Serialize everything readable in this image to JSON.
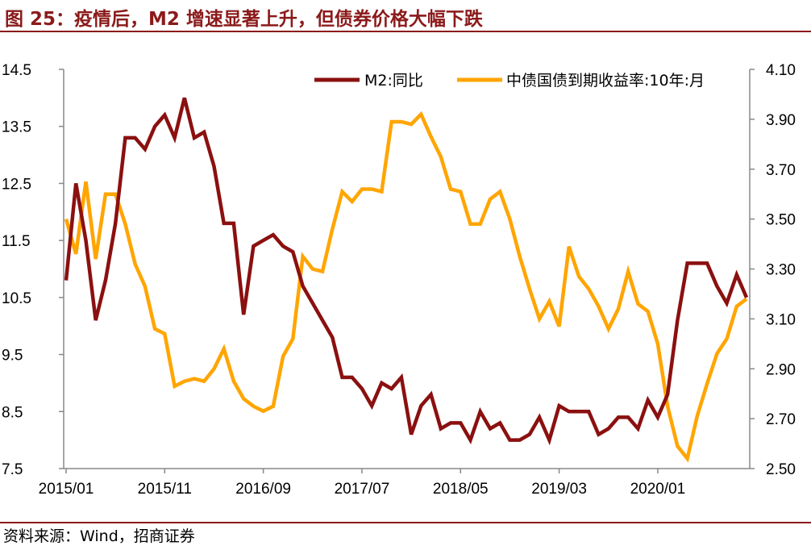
{
  "title": "图 25：疫情后，M2 增速显著上升，但债券价格大幅下跌",
  "source": "资料来源：Wind，招商证券",
  "colors": {
    "title": "#8B1A1A",
    "m2": "#8B1010",
    "yield": "#FFA500",
    "axis": "#888888"
  },
  "chart_data": {
    "type": "line",
    "x_tick_labels": [
      "2015/01",
      "2015/11",
      "2016/09",
      "2017/07",
      "2018/05",
      "2019/03",
      "2020/01"
    ],
    "x_tick_index": [
      0,
      10,
      20,
      30,
      40,
      50,
      60
    ],
    "left_axis": {
      "ticks": [
        "14.5",
        "13.5",
        "12.5",
        "11.5",
        "10.5",
        "9.5",
        "8.5",
        "7.5"
      ],
      "ylim": [
        7.5,
        14.5
      ]
    },
    "right_axis": {
      "ticks": [
        "4.10",
        "3.90",
        "3.70",
        "3.50",
        "3.30",
        "3.10",
        "2.90",
        "2.70",
        "2.50"
      ],
      "ylim": [
        2.5,
        4.1
      ]
    },
    "legend_position": "top-right",
    "series": [
      {
        "name": "M2:同比",
        "axis": "left",
        "values": [
          10.8,
          12.5,
          11.5,
          10.1,
          10.8,
          11.8,
          13.3,
          13.3,
          13.1,
          13.5,
          13.7,
          13.3,
          14.0,
          13.3,
          13.4,
          12.8,
          11.8,
          11.8,
          10.2,
          11.4,
          11.5,
          11.6,
          11.4,
          11.3,
          10.7,
          10.4,
          10.1,
          9.8,
          9.1,
          9.1,
          8.9,
          8.6,
          9.0,
          8.9,
          9.1,
          8.1,
          8.6,
          8.8,
          8.2,
          8.3,
          8.3,
          8.0,
          8.5,
          8.2,
          8.3,
          8.0,
          8.0,
          8.1,
          8.4,
          8.0,
          8.6,
          8.5,
          8.5,
          8.5,
          8.1,
          8.2,
          8.4,
          8.4,
          8.2,
          8.7,
          8.4,
          8.8,
          10.1,
          11.1,
          11.1,
          11.1,
          10.7,
          10.4,
          10.9,
          10.5
        ]
      },
      {
        "name": "中债国债到期收益率:10年:月",
        "axis": "right",
        "values": [
          3.5,
          3.36,
          3.65,
          3.34,
          3.6,
          3.6,
          3.48,
          3.32,
          3.23,
          3.06,
          3.04,
          2.83,
          2.85,
          2.86,
          2.85,
          2.9,
          2.98,
          2.85,
          2.78,
          2.75,
          2.73,
          2.75,
          2.95,
          3.02,
          3.35,
          3.3,
          3.29,
          3.46,
          3.61,
          3.57,
          3.62,
          3.62,
          3.61,
          3.89,
          3.89,
          3.88,
          3.92,
          3.83,
          3.75,
          3.62,
          3.61,
          3.48,
          3.48,
          3.58,
          3.61,
          3.5,
          3.35,
          3.22,
          3.1,
          3.17,
          3.07,
          3.39,
          3.27,
          3.22,
          3.15,
          3.06,
          3.14,
          3.29,
          3.16,
          3.13,
          3.0,
          2.75,
          2.59,
          2.54,
          2.71,
          2.84,
          2.96,
          3.02,
          3.15,
          3.18
        ]
      }
    ]
  }
}
